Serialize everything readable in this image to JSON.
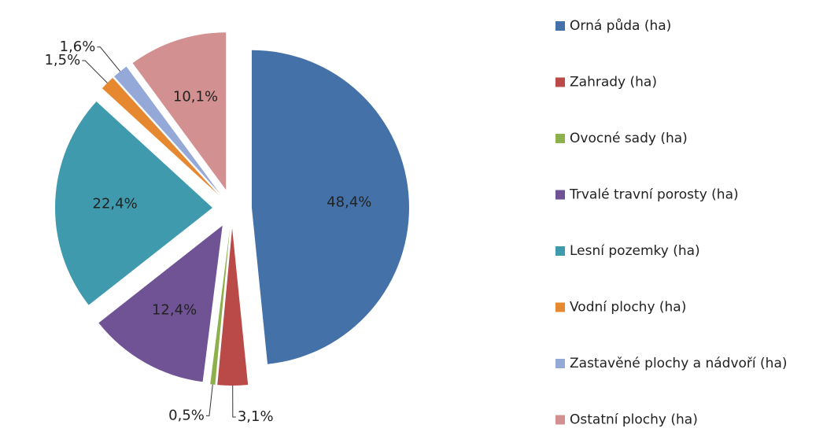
{
  "chart_data": {
    "type": "pie",
    "categories": [
      "Orná půda (ha)",
      "Zahrady (ha)",
      "Ovocné sady (ha)",
      "Trvalé travní porosty (ha)",
      "Lesní pozemky (ha)",
      "Vodní plochy (ha)",
      "Zastavěné plochy a nádvoří (ha)",
      "Ostatní plochy (ha)"
    ],
    "values": [
      48.4,
      3.1,
      0.5,
      12.4,
      22.4,
      1.5,
      1.6,
      10.1
    ],
    "value_labels": [
      "48,4%",
      "3,1%",
      "0,5%",
      "12,4%",
      "22,4%",
      "1,5%",
      "1,6%",
      "10,1%"
    ],
    "colors": [
      "#4472a8",
      "#b94a48",
      "#8db04d",
      "#6f5394",
      "#3f9aae",
      "#e6882f",
      "#94a9d8",
      "#d39090"
    ],
    "legend": "right"
  }
}
